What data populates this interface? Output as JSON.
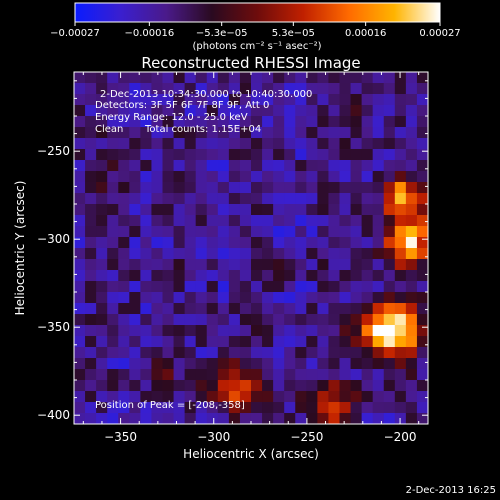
{
  "chart_data": {
    "type": "heatmap",
    "title": "Reconstructed RHESSI Image",
    "xlabel": "Heliocentric X (arcsec)",
    "ylabel": "Heliocentric Y (arcsec)",
    "xlim": [
      -375,
      -185
    ],
    "ylim": [
      -405,
      -205
    ],
    "x_ticks": [
      -350,
      -300,
      -250,
      -200
    ],
    "y_ticks": [
      -250,
      -300,
      -350,
      -400
    ],
    "x_tick_labels": [
      "−350",
      "−300",
      "−250",
      "−200"
    ],
    "y_tick_labels": [
      "−250",
      "−300",
      "−350",
      "−400"
    ],
    "colorbar": {
      "range": [
        -0.00027,
        0.00027
      ],
      "ticks": [
        -0.00027,
        -0.00016,
        -5.3e-05,
        5.3e-05,
        0.00016,
        0.00027
      ],
      "tick_labels": [
        "−0.00027",
        "−0.00016",
        "−5.3e−05",
        "5.3e−05",
        "0.00016",
        "0.00027"
      ],
      "unit_label": "(photons cm⁻² s⁻¹ asec⁻²)",
      "colors": [
        "#0a1cff",
        "#3a1fcf",
        "#4a1a8a",
        "#2a0a20",
        "#6e0c0c",
        "#c02000",
        "#ff6a00",
        "#ffb400",
        "#ffffff"
      ]
    },
    "sources": [
      {
        "x": -205,
        "y": -352,
        "sigma": 12,
        "amp": 1.0
      },
      {
        "x": -195,
        "y": -300,
        "sigma": 10,
        "amp": 0.85
      },
      {
        "x": -198,
        "y": -275,
        "sigma": 8,
        "amp": 0.7
      },
      {
        "x": -288,
        "y": -385,
        "sigma": 11,
        "amp": 0.55
      },
      {
        "x": -238,
        "y": -395,
        "sigma": 10,
        "amp": 0.5
      },
      {
        "x": -330,
        "y": -375,
        "sigma": 8,
        "amp": 0.25
      },
      {
        "x": -358,
        "y": -265,
        "sigma": 9,
        "amp": 0.2
      },
      {
        "x": -225,
        "y": -225,
        "sigma": 9,
        "amp": 0.25
      },
      {
        "x": -270,
        "y": -320,
        "sigma": 7,
        "amp": 0.15
      }
    ],
    "peak": {
      "x": -208,
      "y": -358
    }
  },
  "info": {
    "line1": "2-Dec-2013 10:34:30.000 to 10:40:30.000",
    "line2": "Detectors: 3F 5F 6F 7F 8F 9F, Att 0",
    "line3": "Energy Range: 12.0 - 25.0 keV",
    "line4_a": "Clean",
    "line4_b": "Total counts: 1.15E+04",
    "peak_label": "Position of Peak = [-208,-358]"
  },
  "footer": {
    "timestamp": "2-Dec-2013 16:25"
  }
}
